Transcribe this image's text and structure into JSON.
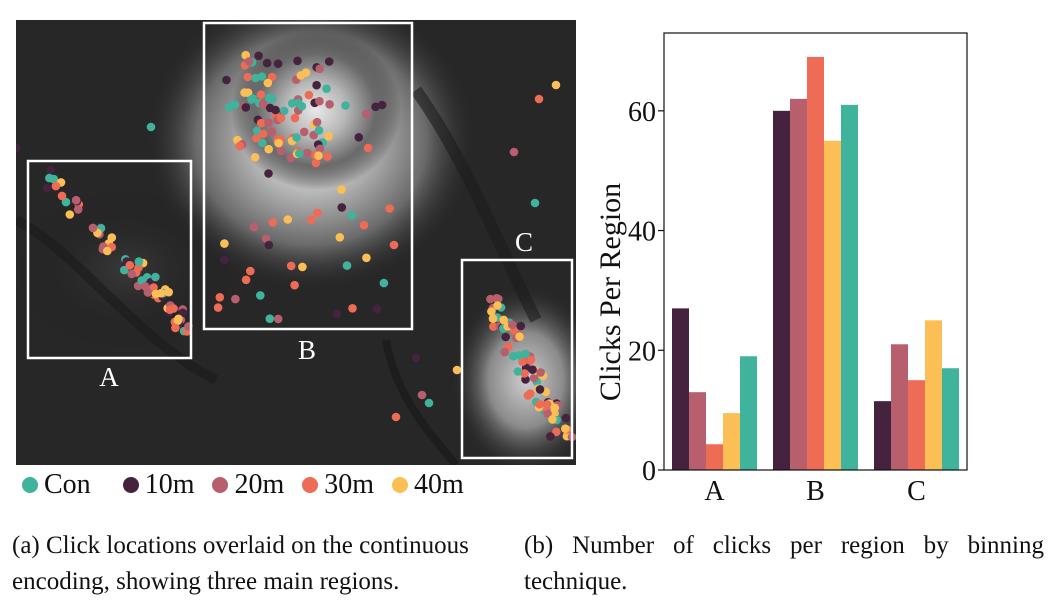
{
  "figure": {
    "legend": [
      {
        "label": "Con",
        "color": "#3fb39b"
      },
      {
        "label": "10m",
        "color": "#45233f"
      },
      {
        "label": "20m",
        "color": "#b75f6d"
      },
      {
        "label": "30m",
        "color": "#ee6b55"
      },
      {
        "label": "40m",
        "color": "#fbbf55"
      }
    ],
    "map_regions": [
      {
        "label": "A"
      },
      {
        "label": "B"
      },
      {
        "label": "C"
      }
    ],
    "caption_a": "(a) Click locations overlaid on the continuous encoding, showing three main regions.",
    "caption_b": "(b) Number of clicks per region by binning technique."
  },
  "chart_data": {
    "type": "bar",
    "categories": [
      "A",
      "B",
      "C"
    ],
    "series": [
      {
        "name": "10m",
        "color": "#45233f",
        "values": [
          27,
          60,
          11.5
        ]
      },
      {
        "name": "20m",
        "color": "#b75f6d",
        "values": [
          13,
          62,
          21
        ]
      },
      {
        "name": "30m",
        "color": "#ee6b55",
        "values": [
          4.3,
          69,
          15
        ]
      },
      {
        "name": "40m",
        "color": "#fbbf55",
        "values": [
          9.5,
          55,
          25
        ]
      },
      {
        "name": "Con",
        "color": "#3fb39b",
        "values": [
          19,
          61,
          17
        ]
      }
    ],
    "ylabel": "Clicks Per Region",
    "xlabel": "",
    "ylim": [
      0,
      73
    ],
    "yticks": [
      0,
      20,
      40,
      60
    ],
    "grid": false,
    "legend": "none"
  }
}
